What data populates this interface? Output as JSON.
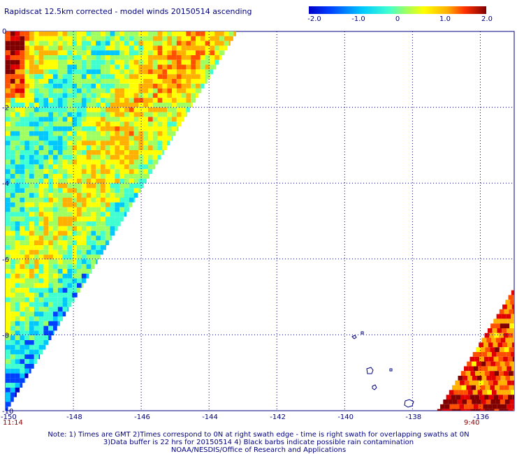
{
  "title": "Rapidscat 12.5km corrected - model winds 20150514 ascending",
  "colorbar": {
    "ticks": [
      "-2.0",
      "-1.0",
      "0",
      "1.0",
      "2.0"
    ],
    "range": [
      -2.0,
      2.0
    ],
    "colors": [
      "#0000c8",
      "#0040ff",
      "#00c8ff",
      "#40ffd0",
      "#a0ff60",
      "#ffff00",
      "#ffb000",
      "#ff5000",
      "#e00000",
      "#800000"
    ]
  },
  "axes": {
    "x_ticks": [
      "-150",
      "-148",
      "-146",
      "-144",
      "-142",
      "-140",
      "-138",
      "-136"
    ],
    "y_ticks": [
      "0",
      "-2",
      "-4",
      "-6",
      "-8",
      "-10"
    ],
    "lon_range": [
      -150,
      -135
    ],
    "lat_range": [
      -10,
      0
    ]
  },
  "times": {
    "left": "11:14",
    "right": "9:40"
  },
  "notes": [
    "Note: 1) Times are GMT 2)Times correspond to 0N at right swath edge - time is right swath for overlapping swaths at 0N",
    "3)Data buffer is 22 hrs for 20150514 4) Black barbs indicate possible rain contamination",
    "NOAA/NESDIS/Office of Research and Applications"
  ],
  "swaths": [
    {
      "name": "left",
      "lon_edge_top": -143.2,
      "lon_edge_bottom": -150,
      "lat_top": 0,
      "lat_bottom": -10
    },
    {
      "name": "right",
      "lon_edge_top": -135,
      "lon_edge_bottom": -137.3,
      "lat_top": -6.7,
      "lat_bottom": -10
    }
  ]
}
